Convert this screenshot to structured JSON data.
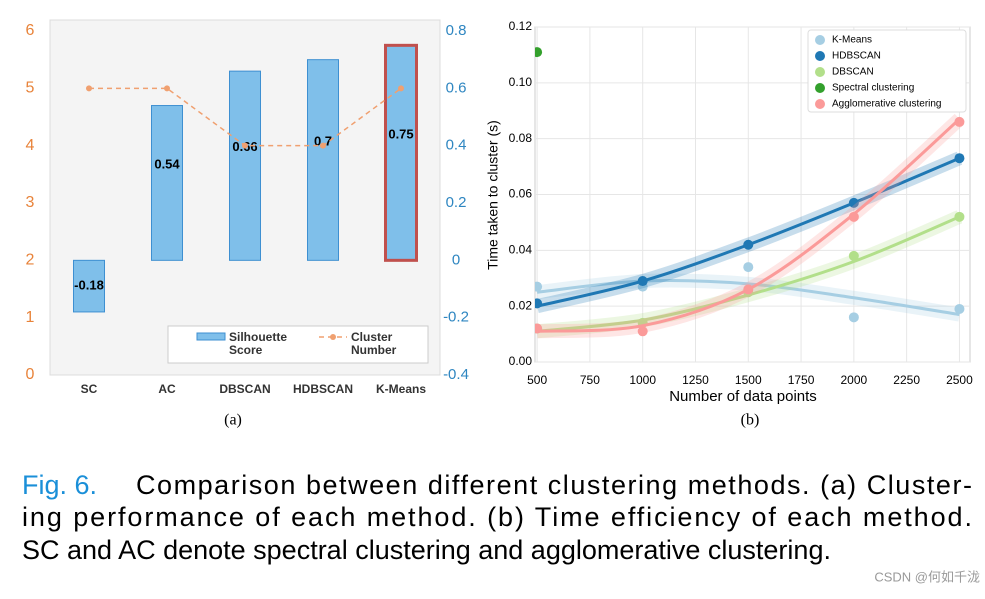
{
  "chart_data": [
    {
      "type": "bar_line",
      "categories": [
        "SC",
        "AC",
        "DBSCAN",
        "HDBSCAN",
        "K-Means"
      ],
      "series": [
        {
          "name": "Silhouette Score",
          "type": "bar",
          "axis": "y2",
          "color": "#7fbfea",
          "edge_colors": [
            "#3d8fd1",
            "#3d8fd1",
            "#3d8fd1",
            "#3d8fd1",
            "#c0504d"
          ],
          "values": [
            -0.18,
            0.54,
            0.66,
            0.7,
            0.75
          ]
        },
        {
          "name": "Cluster Number",
          "type": "line",
          "color": "#f0a070",
          "values": [
            5,
            5,
            4,
            4,
            5
          ]
        }
      ],
      "ylim": [
        0,
        6
      ],
      "yticks": [
        0,
        1,
        2,
        3,
        4,
        5,
        6
      ],
      "y_color": "#e8833a",
      "y2lim": [
        -0.4,
        0.8
      ],
      "y2ticks": [
        -0.4,
        -0.2,
        0,
        0.2,
        0.4,
        0.6,
        0.8
      ],
      "y2_color": "#2e86c1",
      "sublabel": "(a)"
    },
    {
      "type": "scatter",
      "x": [
        500,
        1000,
        1500,
        2000,
        2500
      ],
      "series": [
        {
          "name": "K-Means",
          "color": "#a6cee3",
          "values": [
            0.027,
            0.027,
            0.034,
            0.016,
            0.019
          ],
          "fit": [
            0.025,
            0.029,
            0.028,
            0.023,
            0.017
          ]
        },
        {
          "name": "HDBSCAN",
          "color": "#1f78b4",
          "values": [
            0.021,
            0.029,
            0.042,
            0.057,
            0.073
          ],
          "fit": [
            0.02,
            0.029,
            0.042,
            0.057,
            0.073
          ]
        },
        {
          "name": "DBSCAN",
          "color": "#b2df8a",
          "values": [
            0.012,
            0.014,
            0.025,
            0.038,
            0.052
          ],
          "fit": [
            0.011,
            0.015,
            0.024,
            0.036,
            0.052
          ]
        },
        {
          "name": "Spectral clustering",
          "color": "#33a02c",
          "values": [
            0.111,
            null,
            null,
            null,
            null
          ]
        },
        {
          "name": "Agglomerative clustering",
          "color": "#fb9a99",
          "values": [
            0.012,
            0.011,
            0.026,
            0.052,
            0.086
          ],
          "fit": [
            0.011,
            0.013,
            0.026,
            0.053,
            0.087
          ]
        }
      ],
      "xlim": [
        490,
        2550
      ],
      "xticks": [
        500,
        750,
        1000,
        1250,
        1500,
        1750,
        2000,
        2250,
        2500
      ],
      "ylim": [
        0,
        0.12
      ],
      "yticks": [
        {
          "value": 0,
          "label": "0.00"
        },
        {
          "value": 0.02,
          "label": "0.02"
        },
        {
          "value": 0.04,
          "label": "0.04"
        },
        {
          "value": 0.06,
          "label": "0.06"
        },
        {
          "value": 0.08,
          "label": "0.08"
        },
        {
          "value": 0.1,
          "label": "0.10"
        },
        {
          "value": 0.12,
          "label": "0.12"
        }
      ],
      "xlabel": "Number of data points",
      "ylabel": "Time taken to cluster (s)",
      "grid": true,
      "legend": "upper right",
      "sublabel": "(b)"
    }
  ],
  "caption": {
    "label": "Fig. 6.",
    "lines": [
      "Comparison between different clustering methods. (a) Cluster-",
      "ing performance of each method. (b) Time efficiency of each method.",
      "SC and AC denote spectral clustering and agglomerative clustering."
    ]
  },
  "watermark": "CSDN @何如千泷"
}
